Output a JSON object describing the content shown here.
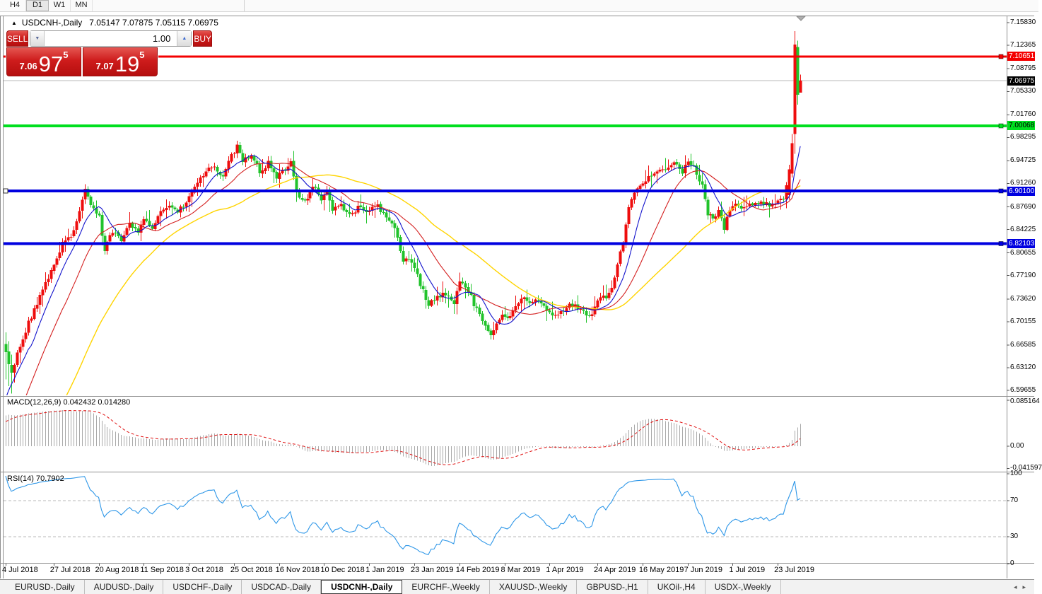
{
  "toolbar": {
    "timeframes": [
      {
        "label": "H4",
        "active": false
      },
      {
        "label": "D1",
        "active": true
      },
      {
        "label": "W1",
        "active": false
      },
      {
        "label": "MN",
        "active": false
      }
    ]
  },
  "chart": {
    "symbol_title": "USDCNH-,Daily",
    "ohlc_text": "7.05147 7.07875 7.05115 7.06975"
  },
  "trade_panel": {
    "sell_label": "SELL",
    "buy_label": "BUY",
    "volume": "1.00",
    "sell_price_small": "7.06",
    "sell_price_big": "97",
    "sell_price_sup": "5",
    "buy_price_small": "7.07",
    "buy_price_big": "19",
    "buy_price_sup": "5"
  },
  "tabs": {
    "items": [
      "EURUSD-,Daily",
      "AUDUSD-,Daily",
      "USDCHF-,Daily",
      "USDCAD-,Daily",
      "USDCNH-,Daily",
      "EURCHF-,Weekly",
      "XAUUSD-,Weekly",
      "GBPUSD-,H1",
      "UKOil-,H4",
      "USDX-,Weekly"
    ],
    "active_index": 4,
    "scroll_left_icon": "◂",
    "scroll_right_icon": "▸"
  },
  "chart_data": {
    "type": "candlestick",
    "symbol": "USDCNH",
    "timeframe": "Daily",
    "ohlc_current": {
      "open": 7.05147,
      "high": 7.07875,
      "low": 7.05115,
      "close": 7.06975
    },
    "ylim": [
      6.589,
      7.167
    ],
    "price_axis_ticks": [
      "7.15830",
      "7.12365",
      "7.08795",
      "7.05330",
      "7.01760",
      "6.98295",
      "6.94725",
      "6.91260",
      "6.87690",
      "6.84225",
      "6.80655",
      "6.77190",
      "6.73620",
      "6.70155",
      "6.66585",
      "6.63120",
      "6.59655"
    ],
    "price_tags": [
      {
        "value": "7.10651",
        "price": 7.10651,
        "bg": "#f40000",
        "fg": "#ffffff"
      },
      {
        "value": "7.06975",
        "price": 7.06975,
        "bg": "#000000",
        "fg": "#ffffff"
      },
      {
        "value": "7.00068",
        "price": 7.00068,
        "bg": "#00df1f",
        "fg": "#000000"
      },
      {
        "value": "6.90100",
        "price": 6.901,
        "bg": "#0000e0",
        "fg": "#ffffff"
      },
      {
        "value": "6.82103",
        "price": 6.82103,
        "bg": "#0000e0",
        "fg": "#ffffff"
      }
    ],
    "levels": [
      {
        "price": 7.10651,
        "color": "#f40000",
        "width": 3
      },
      {
        "price": 7.00068,
        "color": "#00df1f",
        "width": 4
      },
      {
        "price": 6.901,
        "color": "#0000e0",
        "width": 4
      },
      {
        "price": 6.82103,
        "color": "#0000e0",
        "width": 4
      }
    ],
    "current_price": 7.06975,
    "x_axis": {
      "labels": [
        "4 Jul 2018",
        "27 Jul 2018",
        "20 Aug 2018",
        "11 Sep 2018",
        "3 Oct 2018",
        "25 Oct 2018",
        "16 Nov 2018",
        "10 Dec 2018",
        "1 Jan 2019",
        "23 Jan 2019",
        "14 Feb 2019",
        "8 Mar 2019",
        "1 Apr 2019",
        "24 Apr 2019",
        "16 May 2019",
        "7 Jun 2019",
        "1 Jul 2019",
        "23 Jul 2019"
      ],
      "indices": [
        0,
        17,
        33,
        49,
        65,
        81,
        97,
        113,
        129,
        145,
        161,
        177,
        193,
        210,
        226,
        242,
        258,
        274
      ]
    },
    "price_anchors": [
      [
        0,
        6.655
      ],
      [
        2,
        6.625
      ],
      [
        5,
        6.665
      ],
      [
        8,
        6.7
      ],
      [
        12,
        6.74
      ],
      [
        15,
        6.77
      ],
      [
        17,
        6.785
      ],
      [
        20,
        6.82
      ],
      [
        23,
        6.83
      ],
      [
        26,
        6.87
      ],
      [
        28,
        6.905
      ],
      [
        30,
        6.88
      ],
      [
        33,
        6.86
      ],
      [
        35,
        6.81
      ],
      [
        38,
        6.84
      ],
      [
        41,
        6.825
      ],
      [
        44,
        6.85
      ],
      [
        47,
        6.84
      ],
      [
        49,
        6.862
      ],
      [
        52,
        6.845
      ],
      [
        55,
        6.87
      ],
      [
        58,
        6.88
      ],
      [
        61,
        6.868
      ],
      [
        65,
        6.89
      ],
      [
        68,
        6.915
      ],
      [
        71,
        6.93
      ],
      [
        74,
        6.94
      ],
      [
        77,
        6.92
      ],
      [
        80,
        6.955
      ],
      [
        82,
        6.968
      ],
      [
        84,
        6.945
      ],
      [
        87,
        6.958
      ],
      [
        90,
        6.93
      ],
      [
        93,
        6.944
      ],
      [
        96,
        6.92
      ],
      [
        99,
        6.935
      ],
      [
        101,
        6.945
      ],
      [
        103,
        6.9
      ],
      [
        106,
        6.885
      ],
      [
        109,
        6.91
      ],
      [
        112,
        6.89
      ],
      [
        114,
        6.9
      ],
      [
        116,
        6.872
      ],
      [
        119,
        6.88
      ],
      [
        122,
        6.865
      ],
      [
        125,
        6.875
      ],
      [
        129,
        6.87
      ],
      [
        132,
        6.88
      ],
      [
        135,
        6.858
      ],
      [
        138,
        6.845
      ],
      [
        141,
        6.792
      ],
      [
        143,
        6.8
      ],
      [
        145,
        6.782
      ],
      [
        147,
        6.76
      ],
      [
        150,
        6.728
      ],
      [
        153,
        6.74
      ],
      [
        156,
        6.744
      ],
      [
        159,
        6.728
      ],
      [
        161,
        6.766
      ],
      [
        164,
        6.748
      ],
      [
        167,
        6.72
      ],
      [
        170,
        6.692
      ],
      [
        172,
        6.678
      ],
      [
        174,
        6.7
      ],
      [
        176,
        6.714
      ],
      [
        178,
        6.708
      ],
      [
        181,
        6.722
      ],
      [
        183,
        6.74
      ],
      [
        186,
        6.728
      ],
      [
        189,
        6.734
      ],
      [
        192,
        6.718
      ],
      [
        195,
        6.713
      ],
      [
        198,
        6.72
      ],
      [
        201,
        6.728
      ],
      [
        204,
        6.718
      ],
      [
        207,
        6.708
      ],
      [
        210,
        6.733
      ],
      [
        213,
        6.74
      ],
      [
        215,
        6.754
      ],
      [
        217,
        6.79
      ],
      [
        219,
        6.822
      ],
      [
        221,
        6.878
      ],
      [
        223,
        6.9
      ],
      [
        226,
        6.912
      ],
      [
        228,
        6.92
      ],
      [
        231,
        6.93
      ],
      [
        234,
        6.934
      ],
      [
        237,
        6.945
      ],
      [
        240,
        6.928
      ],
      [
        242,
        6.949
      ],
      [
        245,
        6.93
      ],
      [
        247,
        6.908
      ],
      [
        249,
        6.868
      ],
      [
        251,
        6.858
      ],
      [
        253,
        6.874
      ],
      [
        255,
        6.845
      ],
      [
        257,
        6.872
      ],
      [
        259,
        6.88
      ],
      [
        262,
        6.874
      ],
      [
        265,
        6.88
      ],
      [
        268,
        6.884
      ],
      [
        271,
        6.878
      ],
      [
        274,
        6.884
      ],
      [
        276,
        6.89
      ],
      [
        278,
        6.934
      ],
      [
        279,
        6.974
      ],
      [
        280,
        7.125
      ],
      [
        281,
        7.048
      ],
      [
        282,
        7.0698
      ]
    ],
    "final_candles": {
      "278": [
        6.895,
        6.941,
        6.888,
        6.934
      ],
      "279": [
        6.928,
        6.988,
        6.922,
        6.974
      ],
      "280": [
        6.988,
        7.1455,
        6.958,
        7.125
      ],
      "281": [
        7.121,
        7.131,
        7.033,
        7.048
      ],
      "282": [
        7.05147,
        7.07875,
        7.05115,
        7.06975
      ]
    },
    "ma_periods": {
      "fast": 9,
      "mid": 21,
      "slow": 50
    },
    "colors": {
      "bull": "#ee0d0d",
      "bear": "#21c32b",
      "ma_fast": "#1212cc",
      "ma_mid": "#d42020",
      "ma_slow": "#ffd400",
      "macd_hist": "#a9a9a9",
      "macd_signal": "#e01010",
      "rsi": "#2e97e8",
      "dashed_level": "#b8b8b8",
      "current_price_line": "#b8b8b8"
    },
    "macd": {
      "label": "MACD(12,26,9) 0.042432 0.014280",
      "params": [
        12,
        26,
        9
      ],
      "value_main": 0.042432,
      "value_signal": 0.01428,
      "axis_max": "0.085164",
      "axis_zero": "0.00",
      "axis_min": "-0.041597"
    },
    "rsi": {
      "label": "RSI(14) 70.7902",
      "period": 14,
      "value": 70.7902,
      "axis": [
        "100",
        "70",
        "30",
        "0"
      ],
      "levels": [
        70,
        30
      ]
    }
  }
}
